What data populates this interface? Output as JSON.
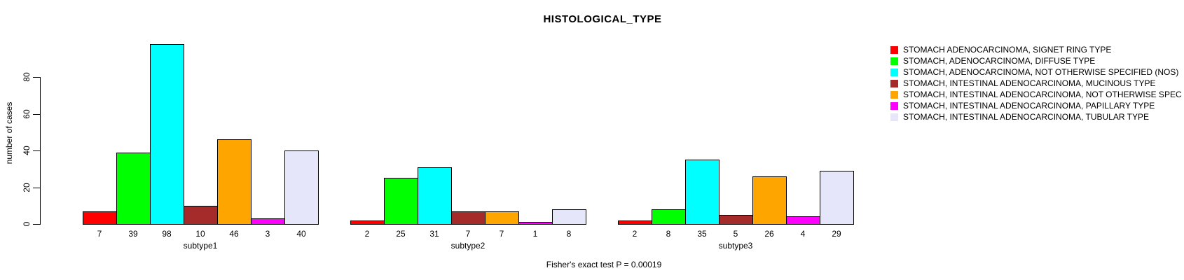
{
  "chart_data": {
    "type": "bar",
    "title": "HISTOLOGICAL_TYPE",
    "ylabel": "number of cases",
    "xlabel": "",
    "footnote": "Fisher's exact test P = 0.00019",
    "categories": [
      "subtype1",
      "subtype2",
      "subtype3"
    ],
    "yticks": [
      0,
      20,
      40,
      60,
      80
    ],
    "ylim": [
      0,
      98
    ],
    "grid": false,
    "legend_position": "right",
    "background_color": "#ffffff",
    "bar_border_color": "#000000",
    "series": [
      {
        "name": "STOMACH ADENOCARCINOMA, SIGNET RING TYPE",
        "color": "#FF0000",
        "values": [
          7,
          2,
          2
        ]
      },
      {
        "name": "STOMACH, ADENOCARCINOMA, DIFFUSE TYPE",
        "color": "#00FF00",
        "values": [
          39,
          25,
          8
        ]
      },
      {
        "name": "STOMACH, ADENOCARCINOMA, NOT OTHERWISE SPECIFIED (NOS)",
        "color": "#00FFFF",
        "values": [
          98,
          31,
          35
        ]
      },
      {
        "name": "STOMACH, INTESTINAL ADENOCARCINOMA, MUCINOUS TYPE",
        "color": "#A52A2A",
        "values": [
          10,
          7,
          5
        ]
      },
      {
        "name": "STOMACH, INTESTINAL ADENOCARCINOMA, NOT OTHERWISE SPEC",
        "color": "#FFA500",
        "values": [
          46,
          7,
          26
        ]
      },
      {
        "name": "STOMACH, INTESTINAL ADENOCARCINOMA, PAPILLARY TYPE",
        "color": "#FF00FF",
        "values": [
          3,
          1,
          4
        ]
      },
      {
        "name": "STOMACH, INTESTINAL ADENOCARCINOMA, TUBULAR TYPE",
        "color": "#E6E6FA",
        "values": [
          40,
          8,
          29
        ]
      }
    ]
  }
}
